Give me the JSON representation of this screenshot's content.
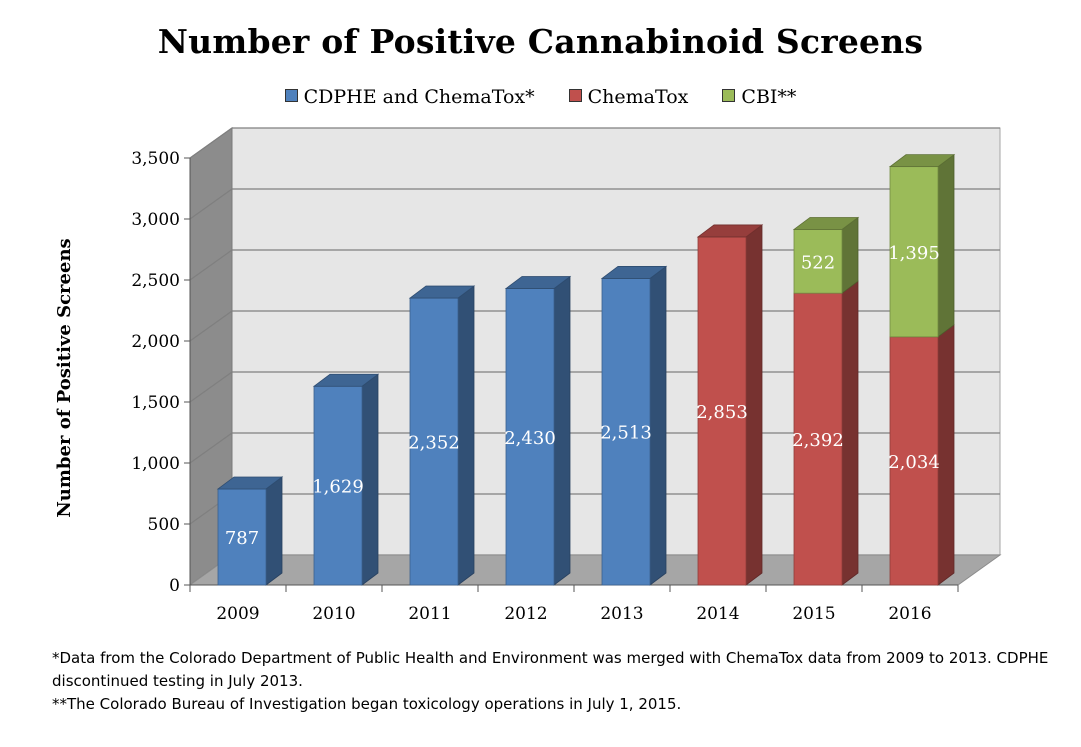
{
  "chart_data": {
    "type": "bar",
    "stacked": true,
    "title": "Number of Positive Cannabinoid Screens",
    "ylabel": "Number of Positive Screens",
    "xlabel": "",
    "ylim": [
      0,
      3500
    ],
    "yticks": [
      0,
      500,
      1000,
      1500,
      2000,
      2500,
      3000,
      3500
    ],
    "ytick_labels": [
      "0",
      "500",
      "1,000",
      "1,500",
      "2,000",
      "2,500",
      "3,000",
      "3,500"
    ],
    "categories": [
      "2009",
      "2010",
      "2011",
      "2012",
      "2013",
      "2014",
      "2015",
      "2016"
    ],
    "series": [
      {
        "name": "CDPHE and ChemaTox*",
        "color": "#4f81bd",
        "values": [
          787,
          1629,
          2352,
          2430,
          2513,
          0,
          0,
          0
        ],
        "labels": [
          "787",
          "1,629",
          "2,352",
          "2,430",
          "2,513",
          "",
          "",
          ""
        ]
      },
      {
        "name": "ChemaTox",
        "color": "#c0504d",
        "values": [
          0,
          0,
          0,
          0,
          0,
          2853,
          2392,
          2034
        ],
        "labels": [
          "",
          "",
          "",
          "",
          "",
          "2,853",
          "2,392",
          "2,034"
        ]
      },
      {
        "name": "CBI**",
        "color": "#9bbb59",
        "values": [
          0,
          0,
          0,
          0,
          0,
          0,
          522,
          1395
        ],
        "labels": [
          "",
          "",
          "",
          "",
          "",
          "",
          "522",
          "1,395"
        ]
      }
    ],
    "legend_position": "top",
    "grid": true,
    "style": "3d-column"
  },
  "footnotes": [
    "*Data from the Colorado Department of Public Health and Environment was merged with ChemaTox data from 2009 to 2013.  CDPHE discontinued testing in July 2013.",
    "**The Colorado Bureau of Investigation began toxicology operations in July 1, 2015."
  ]
}
